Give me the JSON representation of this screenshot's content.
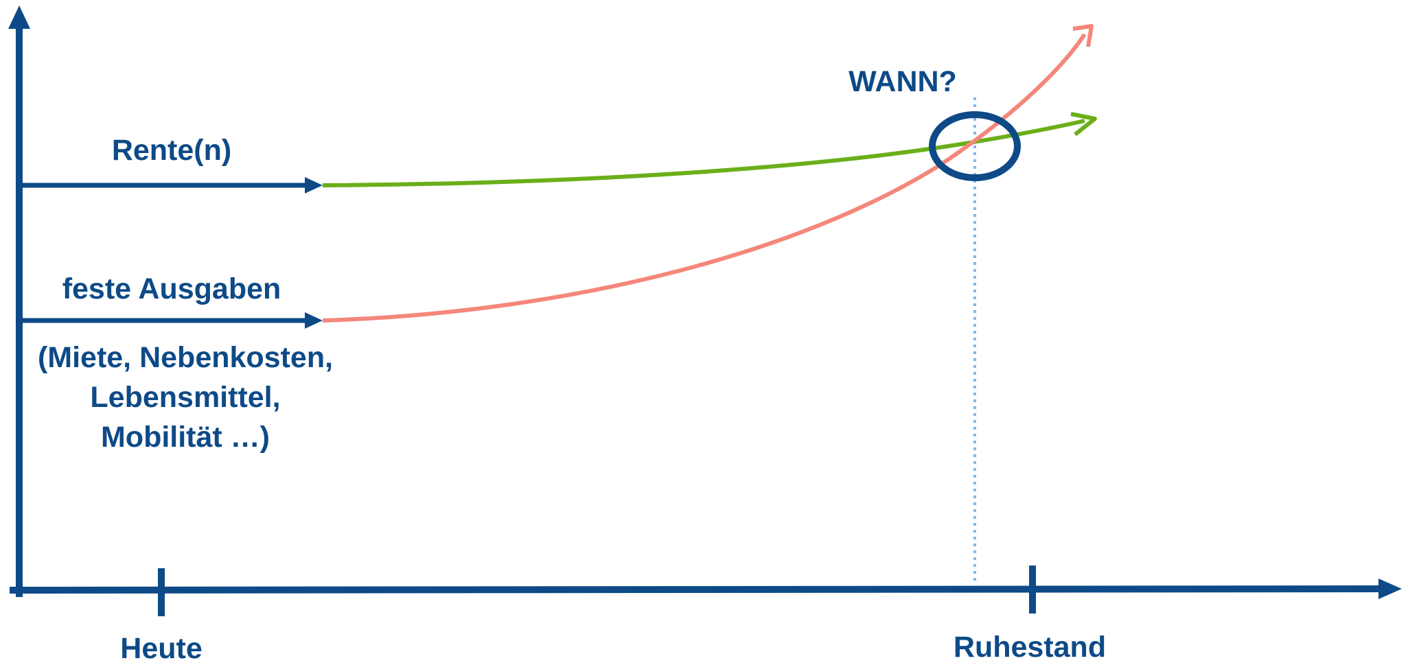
{
  "labels": {
    "rente": "Rente(n)",
    "feste_ausgaben": "feste Ausgaben",
    "ausgaben_detail_1": "(Miete, Nebenkosten,",
    "ausgaben_detail_2": "Lebensmittel,",
    "ausgaben_detail_3": "Mobilität …)",
    "question": "WANN?",
    "tick_today": "Heute",
    "tick_retirement": "Ruhestand"
  },
  "colors": {
    "axis": "#0d4a87",
    "text": "#0d4a87",
    "pension_curve": "#6aaf1a",
    "expenses_curve": "#f4877a",
    "marker_line": "#7fb8ec",
    "circle": "#0d4a87"
  }
}
